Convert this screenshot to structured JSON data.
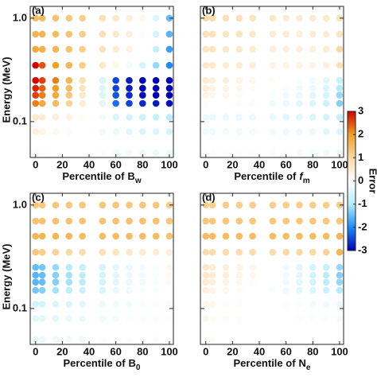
{
  "chart_data": [
    {
      "type": "scatter",
      "panel_label": "(a)",
      "xlabel": "Percentile of",
      "xlabel_symbol": "B",
      "xlabel_sub": "w",
      "xlabel_italic": false,
      "ylabel": "Energy (MeV)",
      "x": [
        0,
        5,
        15,
        25,
        35,
        50,
        60,
        70,
        80,
        90,
        100
      ],
      "y": [
        1.0,
        0.7,
        0.5,
        0.35,
        0.25,
        0.21,
        0.18,
        0.15,
        0.11,
        0.08,
        0.05
      ],
      "z": [
        [
          1.5,
          1.5,
          1.4,
          1.3,
          1.2,
          0.8,
          0.6,
          0.4,
          0.2,
          -0.5,
          -1.5
        ],
        [
          1.6,
          1.6,
          1.5,
          1.4,
          1.2,
          0.8,
          0.6,
          0.4,
          0.1,
          -0.6,
          -1.6
        ],
        [
          1.8,
          1.7,
          1.6,
          1.4,
          1.2,
          0.8,
          0.5,
          0.3,
          0,
          -0.8,
          -1.8
        ],
        [
          3,
          2.5,
          2,
          1.6,
          1.2,
          0.6,
          0.2,
          -0.2,
          -0.6,
          -1.2,
          -2
        ],
        [
          3,
          2.6,
          2.2,
          1.6,
          0.8,
          -0.5,
          -2.5,
          -2.8,
          -3,
          -3,
          -3
        ],
        [
          2.8,
          2.4,
          2,
          1.5,
          0.7,
          -0.5,
          -2.5,
          -2.8,
          -3,
          -3,
          -3
        ],
        [
          2.6,
          2.2,
          1.8,
          1.3,
          0.6,
          -0.5,
          -2.4,
          -2.7,
          -2.9,
          -3,
          -3
        ],
        [
          2.2,
          1.8,
          1.5,
          1.1,
          0.5,
          -0.4,
          -2.2,
          -2.5,
          -2.7,
          -2.8,
          -2.9
        ],
        [
          0.6,
          0.5,
          0.4,
          0.3,
          0.1,
          -0.2,
          -0.5,
          -0.6,
          -0.7,
          -0.8,
          -0.9
        ],
        [
          0.4,
          0.3,
          0.2,
          0.1,
          0,
          -0.2,
          -0.3,
          -0.4,
          -0.5,
          -0.5,
          -0.6
        ],
        [
          0.1,
          0.1,
          0,
          0,
          0,
          -0.1,
          -0.2,
          -0.2,
          -0.3,
          -0.3,
          -0.3
        ]
      ],
      "xlim": [
        -4,
        103
      ],
      "xticks": [
        0,
        20,
        40,
        60,
        80,
        100
      ],
      "ylim": [
        0.045,
        1.3
      ],
      "log_y": true,
      "yticks": [
        0.1,
        {
          "value": 1.0,
          "label": "1.0"
        }
      ],
      "ytick_labels": true
    },
    {
      "type": "scatter",
      "panel_label": "(b)",
      "xlabel": "Percentile of",
      "xlabel_symbol": "f",
      "xlabel_sub": "m",
      "xlabel_italic": true,
      "x": [
        0,
        5,
        15,
        25,
        35,
        50,
        60,
        70,
        80,
        90,
        100
      ],
      "y": [
        1.0,
        0.7,
        0.5,
        0.35,
        0.25,
        0.21,
        0.18,
        0.15,
        0.11,
        0.08,
        0.05
      ],
      "z": [
        [
          0.9,
          0.9,
          0.8,
          0.8,
          0.7,
          0.6,
          0.5,
          0.5,
          0.5,
          0.6,
          0.7
        ],
        [
          0.8,
          0.8,
          0.7,
          0.7,
          0.6,
          0.5,
          0.5,
          0.4,
          0.5,
          0.5,
          0.7
        ],
        [
          0.7,
          0.7,
          0.6,
          0.6,
          0.5,
          0.4,
          0.4,
          0.4,
          0.4,
          0.5,
          1.0
        ],
        [
          0.6,
          0.6,
          0.5,
          0.5,
          0.4,
          0.3,
          0.3,
          0.3,
          0.3,
          0.4,
          0.8
        ],
        [
          0.5,
          0.4,
          0.4,
          0.3,
          0.2,
          0.1,
          0,
          -0.1,
          -0.2,
          -0.4,
          -0.8
        ],
        [
          0.4,
          0.3,
          0.3,
          0.2,
          0.1,
          0,
          -0.1,
          -0.2,
          -0.3,
          -0.5,
          -1.0
        ],
        [
          0.3,
          0.2,
          0.2,
          0.1,
          0,
          -0.1,
          -0.2,
          -0.3,
          -0.4,
          -0.6,
          -1.2
        ],
        [
          0.1,
          0,
          0,
          -0.1,
          -0.1,
          -0.2,
          -0.3,
          -0.4,
          -0.5,
          -0.7,
          -1.3
        ],
        [
          -0.3,
          -0.3,
          -0.3,
          -0.3,
          -0.3,
          -0.3,
          -0.4,
          -0.4,
          -0.5,
          -0.6,
          -0.8
        ],
        [
          -0.2,
          -0.2,
          -0.2,
          -0.2,
          -0.2,
          -0.2,
          -0.3,
          -0.3,
          -0.3,
          -0.4,
          -0.5
        ],
        [
          -0.1,
          -0.1,
          -0.1,
          -0.1,
          -0.1,
          -0.1,
          -0.1,
          -0.2,
          -0.2,
          -0.2,
          -0.3
        ]
      ],
      "xlim": [
        -4,
        103
      ],
      "xticks": [
        0,
        20,
        40,
        60,
        80,
        100
      ],
      "ylim": [
        0.045,
        1.3
      ],
      "log_y": true,
      "yticks": [
        0.1,
        1.0
      ],
      "ytick_labels": false
    },
    {
      "type": "scatter",
      "panel_label": "(c)",
      "xlabel": "Percentile of",
      "xlabel_symbol": "B",
      "xlabel_sub": "0",
      "xlabel_italic": false,
      "ylabel": "Energy (MeV)",
      "x": [
        0,
        5,
        15,
        25,
        35,
        50,
        60,
        70,
        80,
        90,
        100
      ],
      "y": [
        1.0,
        0.7,
        0.5,
        0.35,
        0.25,
        0.21,
        0.18,
        0.15,
        0.11,
        0.08,
        0.05
      ],
      "z": [
        [
          1.3,
          1.3,
          1.3,
          1.3,
          1.3,
          1.3,
          1.3,
          1.3,
          1.3,
          1.3,
          1.2
        ],
        [
          1.4,
          1.4,
          1.4,
          1.4,
          1.4,
          1.4,
          1.4,
          1.4,
          1.4,
          1.4,
          1.3
        ],
        [
          1.6,
          1.6,
          1.6,
          1.6,
          1.5,
          1.5,
          1.5,
          1.5,
          1.5,
          1.5,
          1.4
        ],
        [
          1.3,
          1.2,
          1.1,
          1.0,
          0.9,
          0.8,
          0.7,
          0.6,
          0.5,
          0.5,
          0.4
        ],
        [
          -1.5,
          -1.4,
          -1.2,
          -1.0,
          -0.8,
          -0.6,
          -0.4,
          -0.3,
          -0.2,
          -0.1,
          0.2
        ],
        [
          -1.6,
          -1.5,
          -1.3,
          -1.1,
          -0.9,
          -0.6,
          -0.4,
          -0.3,
          -0.2,
          -0.1,
          0.1
        ],
        [
          -1.6,
          -1.5,
          -1.3,
          -1.1,
          -0.9,
          -0.6,
          -0.4,
          -0.3,
          -0.2,
          -0.1,
          0.1
        ],
        [
          -1.4,
          -1.3,
          -1.1,
          -0.9,
          -0.7,
          -0.5,
          -0.3,
          -0.2,
          -0.1,
          -0.1,
          0
        ],
        [
          -0.6,
          -0.6,
          -0.5,
          -0.5,
          -0.4,
          -0.3,
          -0.2,
          -0.2,
          -0.1,
          -0.1,
          -0.1
        ],
        [
          -0.4,
          -0.4,
          -0.4,
          -0.3,
          -0.3,
          -0.2,
          -0.2,
          -0.1,
          -0.1,
          -0.1,
          -0.1
        ],
        [
          -0.3,
          -0.3,
          -0.2,
          -0.2,
          -0.2,
          -0.1,
          -0.1,
          -0.1,
          -0.1,
          -0.1,
          -0.1
        ]
      ],
      "xlim": [
        -4,
        103
      ],
      "xticks": [
        0,
        20,
        40,
        60,
        80,
        100
      ],
      "ylim": [
        0.045,
        1.3
      ],
      "log_y": true,
      "yticks": [
        0.1,
        {
          "value": 1.0,
          "label": "1.0"
        }
      ],
      "ytick_labels": true
    },
    {
      "type": "scatter",
      "panel_label": "(d)",
      "xlabel": "Percentile of",
      "xlabel_symbol": "N",
      "xlabel_sub": "e",
      "xlabel_italic": false,
      "x": [
        0,
        5,
        15,
        25,
        35,
        50,
        60,
        70,
        80,
        90,
        100
      ],
      "y": [
        1.0,
        0.7,
        0.5,
        0.35,
        0.25,
        0.21,
        0.18,
        0.15,
        0.11,
        0.08,
        0.05
      ],
      "z": [
        [
          1.2,
          1.2,
          1.2,
          1.2,
          1.2,
          1.2,
          1.2,
          1.2,
          1.2,
          1.2,
          1.2
        ],
        [
          1.3,
          1.3,
          1.3,
          1.3,
          1.3,
          1.3,
          1.3,
          1.3,
          1.3,
          1.3,
          1.3
        ],
        [
          1.5,
          1.5,
          1.5,
          1.5,
          1.5,
          1.5,
          1.5,
          1.5,
          1.5,
          1.5,
          1.6
        ],
        [
          0.9,
          0.9,
          0.9,
          0.9,
          0.9,
          0.9,
          1.0,
          1.0,
          1.0,
          1.1,
          1.6
        ],
        [
          0.6,
          0.5,
          0.4,
          0.3,
          0.2,
          0,
          -0.2,
          -0.4,
          -0.6,
          -0.8,
          -1.2
        ],
        [
          0.6,
          0.5,
          0.4,
          0.3,
          0.2,
          0,
          -0.2,
          -0.4,
          -0.6,
          -0.9,
          -1.3
        ],
        [
          0.5,
          0.4,
          0.3,
          0.2,
          0.1,
          0,
          -0.2,
          -0.4,
          -0.6,
          -0.9,
          -1.2
        ],
        [
          0.4,
          0.3,
          0.2,
          0.1,
          0,
          -0.1,
          -0.2,
          -0.4,
          -0.5,
          -0.7,
          -1.0
        ],
        [
          0.2,
          0.2,
          0.1,
          0.1,
          0,
          0,
          -0.1,
          -0.1,
          -0.2,
          -0.2,
          -0.3
        ],
        [
          0.2,
          0.1,
          0.1,
          0.1,
          0,
          0,
          0,
          -0.1,
          -0.1,
          -0.1,
          -0.2
        ],
        [
          0.1,
          0.1,
          0,
          0,
          0,
          0,
          0,
          0,
          0,
          0,
          -0.1
        ]
      ],
      "xlim": [
        -4,
        103
      ],
      "xticks": [
        0,
        20,
        40,
        60,
        80,
        100
      ],
      "ylim": [
        0.045,
        1.3
      ],
      "log_y": true,
      "yticks": [
        0.1,
        1.0
      ],
      "ytick_labels": false
    }
  ],
  "colorbar": {
    "label": "Error",
    "clim": [
      -3,
      3
    ],
    "ticks": [
      -3,
      -2,
      -1,
      0,
      1,
      2,
      3
    ],
    "colors": [
      "#0000b4",
      "#1a8cff",
      "#b4ecf8",
      "#ffffff",
      "#fbd8a4",
      "#f0a020",
      "#d40000"
    ]
  }
}
